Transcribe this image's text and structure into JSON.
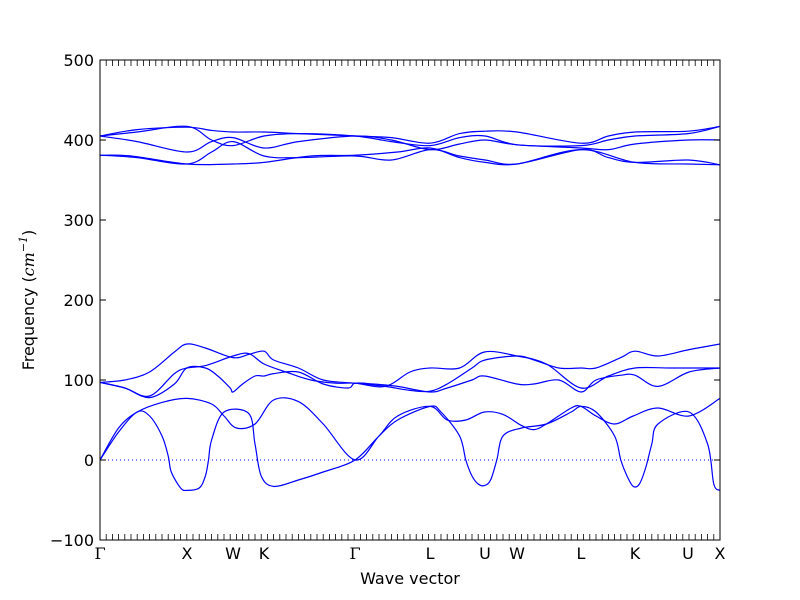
{
  "chart_data": {
    "type": "line",
    "xlabel": "Wave vector",
    "ylabel_prefix": "Frequency (",
    "ylabel_unit": "cm",
    "ylabel_exp": "−1",
    "ylabel_suffix": ")",
    "ylim": [
      -100,
      500
    ],
    "yticks": [
      -100,
      0,
      100,
      200,
      300,
      400,
      500
    ],
    "ytick_labels": [
      "−100",
      "0",
      "100",
      "200",
      "300",
      "400",
      "500"
    ],
    "xlim": [
      0,
      1
    ],
    "xticks": [
      {
        "label": "Γ",
        "pos": 0.0
      },
      {
        "label": "X",
        "pos": 0.1403
      },
      {
        "label": "W",
        "pos": 0.2145
      },
      {
        "label": "K",
        "pos": 0.2645
      },
      {
        "label": "Γ",
        "pos": 0.4113
      },
      {
        "label": "L",
        "pos": 0.5323
      },
      {
        "label": "U",
        "pos": 0.621
      },
      {
        "label": "W",
        "pos": 0.6726
      },
      {
        "label": "L",
        "pos": 0.7758
      },
      {
        "label": "K",
        "pos": 0.8629
      },
      {
        "label": "U",
        "pos": 0.9484
      },
      {
        "label": "X",
        "pos": 1.0
      }
    ],
    "zero_line": true,
    "line_color": "#0000ff",
    "zero_line_color": "#0000ff",
    "series": [
      {
        "x": [
          0,
          0.03,
          0.06,
          0.08,
          0.1,
          0.11,
          0.115,
          0.13,
          0.14,
          0.16,
          0.17,
          0.175,
          0.18,
          0.2,
          0.24,
          0.25,
          0.26,
          0.28,
          0.32,
          0.36,
          0.4113,
          0.45,
          0.48,
          0.5323,
          0.55,
          0.58,
          0.59,
          0.6,
          0.61,
          0.62,
          0.63,
          0.64,
          0.65,
          0.68,
          0.72,
          0.76,
          0.7758,
          0.8,
          0.83,
          0.84,
          0.85,
          0.86,
          0.87,
          0.88,
          0.89,
          0.9,
          0.95,
          0.98,
          0.99,
          1.0
        ],
        "y": [
          0,
          35,
          60,
          55,
          30,
          5,
          -15,
          -35,
          -38,
          -35,
          -20,
          0,
          25,
          60,
          58,
          20,
          -20,
          -33,
          -25,
          -15,
          0,
          30,
          50,
          67,
          60,
          30,
          0,
          -20,
          -30,
          -32,
          -25,
          0,
          30,
          40,
          45,
          60,
          67,
          60,
          30,
          0,
          -20,
          -33,
          -30,
          -10,
          20,
          45,
          60,
          20,
          -30,
          -38
        ]
      },
      {
        "x": [
          0,
          0.03,
          0.06,
          0.1,
          0.14,
          0.18,
          0.2,
          0.22,
          0.25,
          0.28,
          0.32,
          0.36,
          0.4113,
          0.45,
          0.48,
          0.5323,
          0.56,
          0.59,
          0.62,
          0.65,
          0.68,
          0.7,
          0.72,
          0.76,
          0.7758,
          0.8,
          0.83,
          0.86,
          0.9,
          0.95,
          1.0
        ],
        "y": [
          0,
          40,
          60,
          72,
          77,
          70,
          55,
          40,
          45,
          75,
          73,
          45,
          0,
          30,
          55,
          67,
          50,
          50,
          60,
          57,
          43,
          38,
          45,
          65,
          67,
          55,
          45,
          55,
          65,
          55,
          77
        ]
      },
      {
        "x": [
          0,
          0.04,
          0.08,
          0.12,
          0.14,
          0.17,
          0.19,
          0.21,
          0.2145,
          0.23,
          0.25,
          0.2645,
          0.28,
          0.32,
          0.36,
          0.4,
          0.4113,
          0.44,
          0.48,
          0.5323,
          0.56,
          0.6,
          0.62,
          0.6726,
          0.7,
          0.74,
          0.7758,
          0.8,
          0.84,
          0.8629,
          0.9,
          0.95,
          1.0
        ],
        "y": [
          97,
          90,
          78,
          95,
          115,
          115,
          105,
          90,
          85,
          95,
          105,
          105,
          108,
          110,
          95,
          90,
          96,
          95,
          92,
          85,
          90,
          100,
          105,
          95,
          95,
          100,
          85,
          100,
          106,
          106,
          92,
          110,
          115
        ]
      },
      {
        "x": [
          0,
          0.04,
          0.08,
          0.12,
          0.1403,
          0.17,
          0.2145,
          0.24,
          0.2645,
          0.28,
          0.32,
          0.36,
          0.4113,
          0.46,
          0.5,
          0.5323,
          0.56,
          0.6,
          0.621,
          0.6726,
          0.7,
          0.74,
          0.7758,
          0.8,
          0.84,
          0.8629,
          0.9,
          0.95,
          1.0
        ],
        "y": [
          97,
          100,
          110,
          135,
          145,
          140,
          128,
          132,
          136,
          125,
          115,
          100,
          96,
          92,
          87,
          86,
          95,
          115,
          125,
          130,
          125,
          115,
          115,
          115,
          128,
          136,
          130,
          138,
          145
        ]
      },
      {
        "x": [
          0,
          0.04,
          0.08,
          0.12,
          0.1403,
          0.17,
          0.2145,
          0.24,
          0.2645,
          0.3,
          0.34,
          0.38,
          0.4113,
          0.46,
          0.5,
          0.5323,
          0.58,
          0.62,
          0.6726,
          0.72,
          0.7758,
          0.82,
          0.8629,
          0.92,
          1.0
        ],
        "y": [
          97,
          90,
          80,
          108,
          115,
          118,
          130,
          133,
          120,
          110,
          100,
          96,
          96,
          92,
          110,
          115,
          115,
          135,
          130,
          120,
          90,
          105,
          115,
          115,
          115
        ]
      },
      {
        "x": [
          0,
          0.05,
          0.1403,
          0.2145,
          0.2645,
          0.34,
          0.4113,
          0.48,
          0.5323,
          0.58,
          0.621,
          0.6726,
          0.7758,
          0.8629,
          0.9484,
          1.0
        ],
        "y": [
          381,
          380,
          370,
          370,
          372,
          380,
          381,
          385,
          390,
          378,
          372,
          370,
          388,
          372,
          370,
          369
        ]
      },
      {
        "x": [
          0,
          0.06,
          0.1403,
          0.18,
          0.2145,
          0.2645,
          0.32,
          0.4113,
          0.47,
          0.5323,
          0.58,
          0.621,
          0.6726,
          0.7758,
          0.82,
          0.8629,
          0.9484,
          1.0
        ],
        "y": [
          381,
          378,
          370,
          385,
          398,
          380,
          378,
          380,
          375,
          388,
          380,
          375,
          370,
          388,
          378,
          372,
          375,
          369
        ]
      },
      {
        "x": [
          0,
          0.06,
          0.1403,
          0.18,
          0.2145,
          0.2645,
          0.32,
          0.4113,
          0.47,
          0.5323,
          0.58,
          0.621,
          0.6726,
          0.7758,
          0.82,
          0.8629,
          0.9484,
          1.0
        ],
        "y": [
          405,
          398,
          385,
          398,
          403,
          390,
          398,
          405,
          400,
          388,
          395,
          400,
          394,
          390,
          388,
          395,
          400,
          400
        ]
      },
      {
        "x": [
          0,
          0.06,
          0.1403,
          0.18,
          0.2145,
          0.2645,
          0.32,
          0.4113,
          0.47,
          0.5323,
          0.58,
          0.621,
          0.6726,
          0.7758,
          0.82,
          0.8629,
          0.9484,
          1.0
        ],
        "y": [
          405,
          410,
          417,
          400,
          393,
          405,
          408,
          405,
          398,
          393,
          403,
          405,
          394,
          393,
          400,
          405,
          408,
          417
        ]
      },
      {
        "x": [
          0,
          0.06,
          0.1403,
          0.18,
          0.2145,
          0.2645,
          0.32,
          0.4113,
          0.47,
          0.5323,
          0.58,
          0.621,
          0.6726,
          0.7758,
          0.82,
          0.8629,
          0.9484,
          1.0
        ],
        "y": [
          405,
          413,
          416,
          412,
          410,
          410,
          408,
          405,
          403,
          396,
          408,
          411,
          410,
          396,
          405,
          410,
          411,
          417
        ]
      }
    ]
  }
}
